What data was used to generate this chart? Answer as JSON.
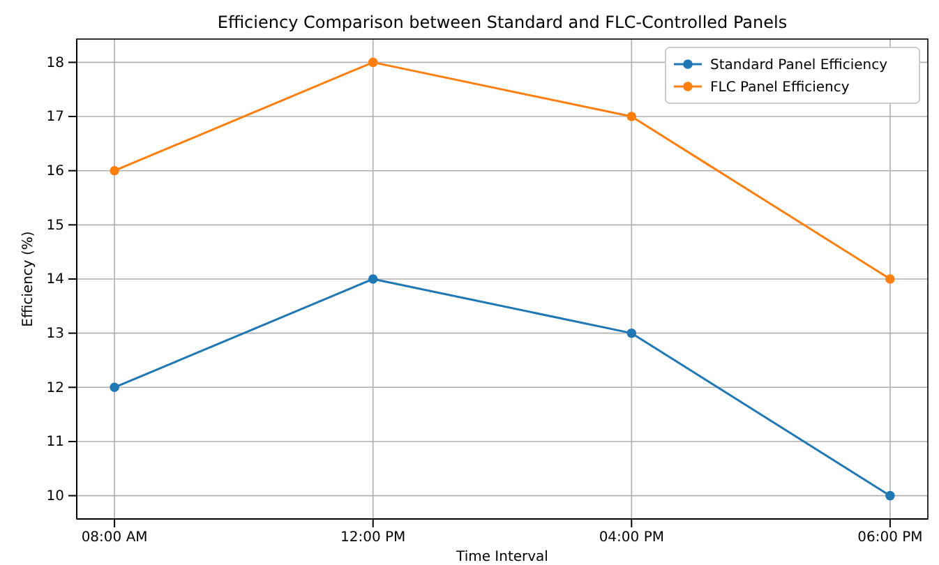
{
  "chart_data": {
    "type": "line",
    "title": "Efficiency Comparison between Standard and FLC-Controlled Panels",
    "xlabel": "Time Interval",
    "ylabel": "Efficiency (%)",
    "categories": [
      "08:00 AM",
      "12:00 PM",
      "04:00 PM",
      "06:00 PM"
    ],
    "series": [
      {
        "name": "Standard Panel Efficiency",
        "color": "#1f77b4",
        "values": [
          12,
          14,
          13,
          10
        ]
      },
      {
        "name": "FLC Panel Efficiency",
        "color": "#ff7f0e",
        "values": [
          16,
          18,
          17,
          14
        ]
      }
    ],
    "ylim": [
      9.57,
      18.43
    ],
    "yticks": [
      10,
      11,
      12,
      13,
      14,
      15,
      16,
      17,
      18
    ],
    "grid": true,
    "legend": "top right",
    "marker": "circle",
    "line_style": "solid"
  }
}
